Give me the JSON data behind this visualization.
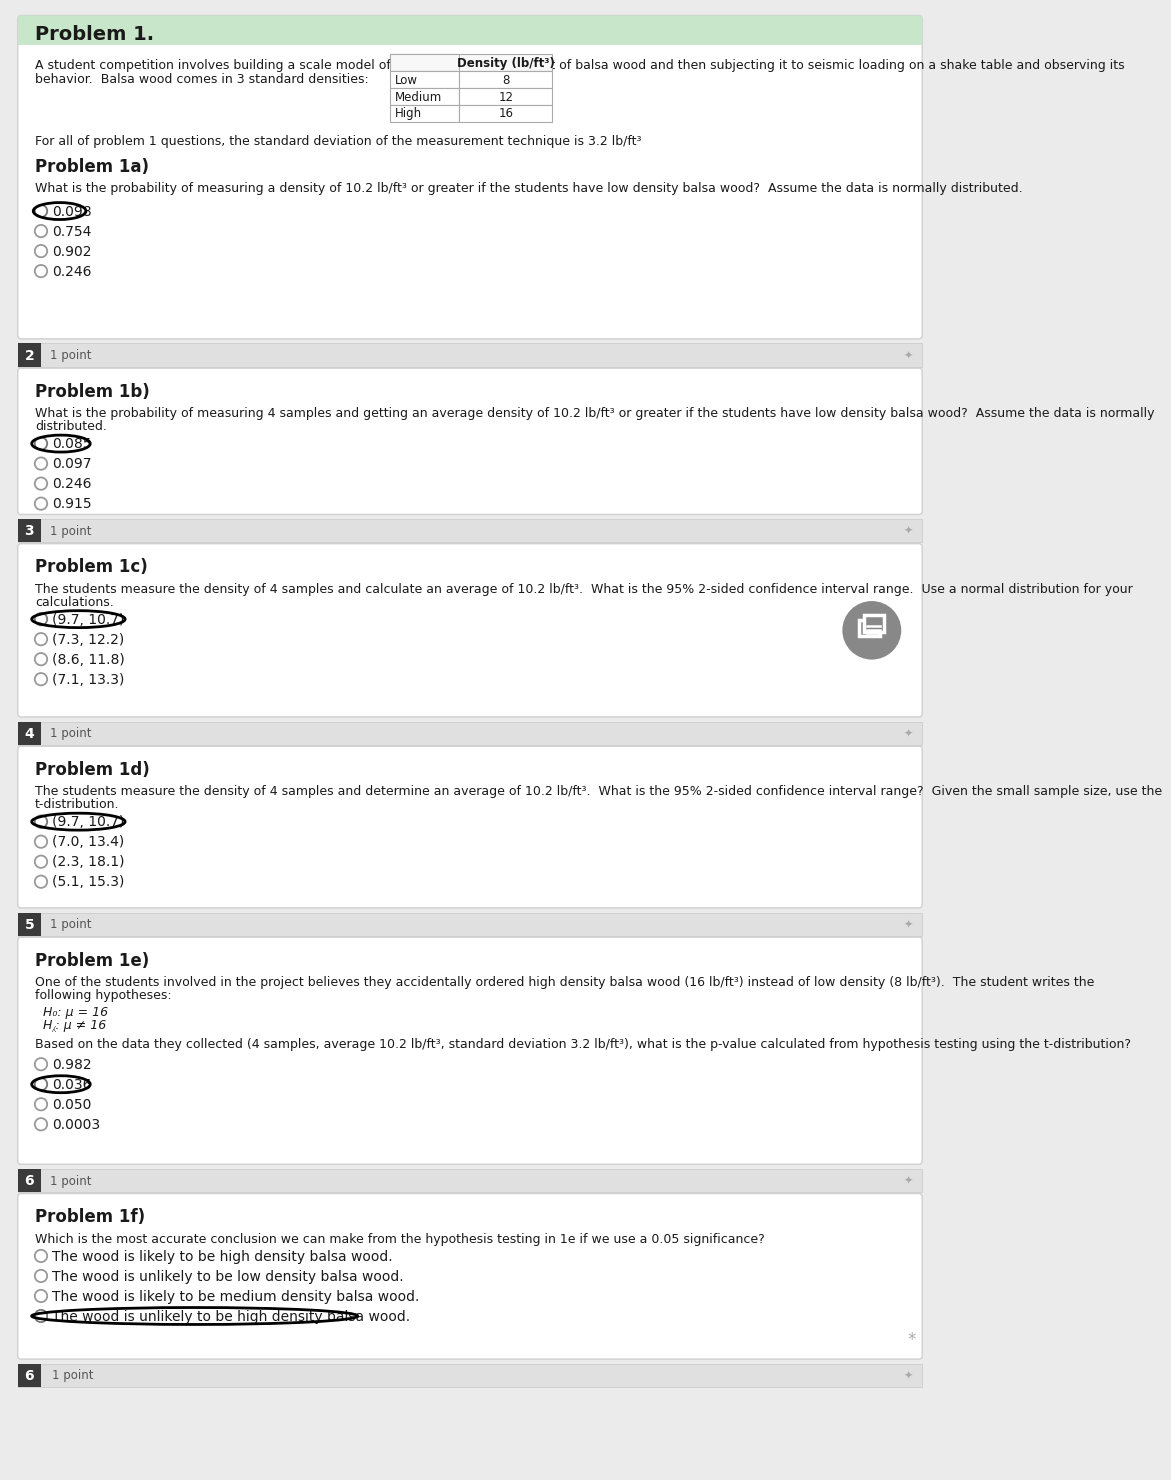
{
  "bg_color": "#ebebeb",
  "white": "#ffffff",
  "card_edge": "#d0d0d0",
  "badge_bg": "#e0e0e0",
  "badge_num_bg": "#3a3a3a",
  "header_green": "#c8e6c9",
  "title": "Problem 1.",
  "intro_line1": "A student competition involves building a scale model of a multistory structure out of balsa wood and then subjecting it to seismic loading on a shake table and observing its",
  "intro_line2": "behavior.  Balsa wood comes in 3 standard densities:",
  "table_header_col": "Density (lb/ft³)",
  "table_rows": [
    [
      "Low",
      "8"
    ],
    [
      "Medium",
      "12"
    ],
    [
      "High",
      "16"
    ]
  ],
  "std_note": "For all of problem 1 questions, the standard deviation of the measurement technique is 3.2 lb/ft³",
  "problems": [
    {
      "label": "Problem 1a)",
      "question_lines": [
        "What is the probability of measuring a density of 10.2 lb/ft³ or greater if the students have low density balsa wood?  Assume the data is normally distributed."
      ],
      "choices": [
        "0.098",
        "0.754",
        "0.902",
        "0.246"
      ],
      "correct": 0,
      "badge": null
    },
    {
      "label": "Problem 1b)",
      "question_lines": [
        "What is the probability of measuring 4 samples and getting an average density of 10.2 lb/ft³ or greater if the students have low density balsa wood?  Assume the data is normally",
        "distributed."
      ],
      "choices": [
        "0.085",
        "0.097",
        "0.246",
        "0.915"
      ],
      "correct": 0,
      "badge": "2"
    },
    {
      "label": "Problem 1c)",
      "question_lines": [
        "The students measure the density of 4 samples and calculate an average of 10.2 lb/ft³.  What is the 95% 2-sided confidence interval range.  Use a normal distribution for your",
        "calculations."
      ],
      "choices": [
        "(9.7, 10.7)",
        "(7.3, 12.2)",
        "(8.6, 11.8)",
        "(7.1, 13.3)"
      ],
      "correct": 0,
      "badge": "3",
      "has_icon": true
    },
    {
      "label": "Problem 1d)",
      "question_lines": [
        "The students measure the density of 4 samples and determine an average of 10.2 lb/ft³.  What is the 95% 2-sided confidence interval range?  Given the small sample size, use the",
        "t-distribution."
      ],
      "choices": [
        "(9.7, 10.7)",
        "(7.0, 13.4)",
        "(2.3, 18.1)",
        "(5.1, 15.3)"
      ],
      "correct": 0,
      "badge": "4"
    },
    {
      "label": "Problem 1e)",
      "question_lines": [
        "One of the students involved in the project believes they accidentally ordered high density balsa wood (16 lb/ft³) instead of low density (8 lb/ft³).  The student writes the",
        "following hypotheses:"
      ],
      "hypotheses": [
        "H₀: μ = 16",
        "H⁁: μ ≠ 16"
      ],
      "question2_lines": [
        "Based on the data they collected (4 samples, average 10.2 lb/ft³, standard deviation 3.2 lb/ft³), what is the p-value calculated from hypothesis testing using the t-distribution?"
      ],
      "choices": [
        "0.982",
        "0.036",
        "0.050",
        "0.0003"
      ],
      "correct": 1,
      "badge": "5"
    },
    {
      "label": "Problem 1f)",
      "question_lines": [
        "Which is the most accurate conclusion we can make from the hypothesis testing in 1e if we use a 0.05 significance?"
      ],
      "choices": [
        "The wood is likely to be high density balsa wood.",
        "The wood is unlikely to be low density balsa wood.",
        "The wood is likely to be medium density balsa wood.",
        "The wood is unlikely to be high density balsa wood."
      ],
      "correct": 3,
      "badge": "6",
      "is_last": true
    }
  ],
  "points_text": "1 point"
}
